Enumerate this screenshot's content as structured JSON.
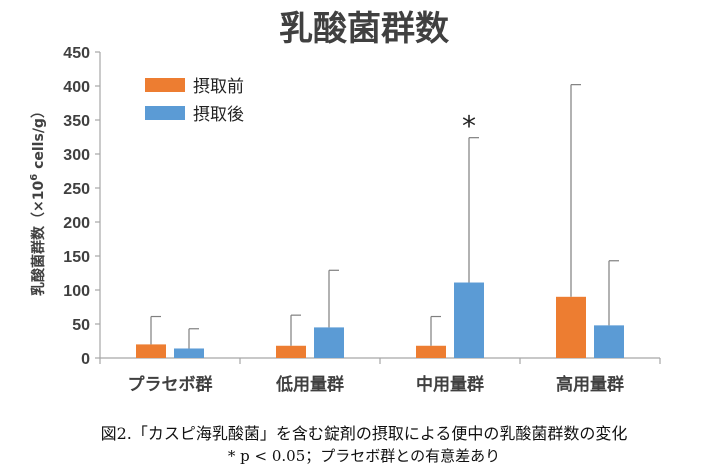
{
  "chart_data": {
    "type": "bar",
    "title": "乳酸菌群数",
    "ylabel": "乳酸菌群数（×10⁶ cells/g）",
    "ylabel_parts": {
      "main": "乳酸菌群数（×10",
      "exp": "6",
      "unit": " cells/g）"
    },
    "ylim": [
      0,
      450
    ],
    "yticks": [
      0,
      50,
      100,
      150,
      200,
      250,
      300,
      350,
      400,
      450
    ],
    "categories": [
      "プラセボ群",
      "低用量群",
      "中用量群",
      "高用量群"
    ],
    "series": [
      {
        "name": "摂取前",
        "color": "#ed7d31",
        "values": [
          20,
          18,
          18,
          90
        ],
        "err_upper": [
          61,
          63,
          61,
          402
        ]
      },
      {
        "name": "摂取後",
        "color": "#5b9bd5",
        "values": [
          14,
          45,
          111,
          48
        ],
        "err_upper": [
          43,
          129,
          324,
          143
        ]
      }
    ],
    "annotations": [
      {
        "text": "*",
        "category_index": 2,
        "series_index": 1
      }
    ],
    "legend": "top-left"
  },
  "caption": {
    "line1": "図2.「カスピ海乳酸菌」を含む錠剤の摂取による便中の乳酸菌群数の変化",
    "line2": "* p < 0.05；プラセボ群との有意差あり"
  },
  "colors": {
    "axis": "#a6a6a6",
    "text": "#404040",
    "error_bar": "#7f7f7f"
  }
}
